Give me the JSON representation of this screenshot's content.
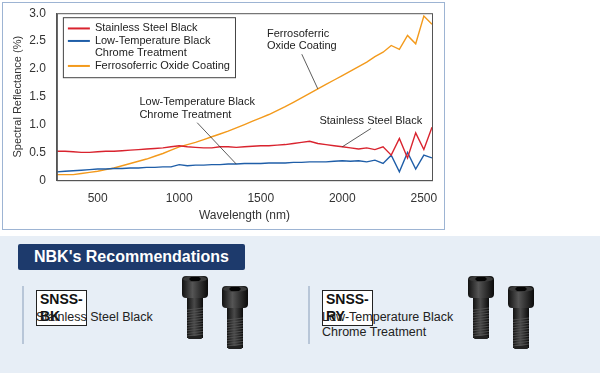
{
  "chart_data": {
    "type": "line",
    "x_label": "Wavelength (nm)",
    "y_label": "Spectral Reflectance (%)",
    "x": [
      250,
      300,
      350,
      400,
      450,
      500,
      550,
      600,
      650,
      700,
      750,
      800,
      850,
      900,
      950,
      1000,
      1050,
      1100,
      1150,
      1200,
      1250,
      1300,
      1350,
      1400,
      1450,
      1500,
      1550,
      1600,
      1650,
      1700,
      1750,
      1800,
      1850,
      1900,
      1950,
      2000,
      2050,
      2100,
      2150,
      2200,
      2250,
      2300,
      2350,
      2400,
      2450,
      2500,
      2550
    ],
    "series": [
      {
        "name": "Stainless Steel Black",
        "color": "#d9232e",
        "values": [
          0.52,
          0.52,
          0.51,
          0.5,
          0.5,
          0.51,
          0.52,
          0.52,
          0.53,
          0.54,
          0.55,
          0.56,
          0.57,
          0.58,
          0.6,
          0.62,
          0.6,
          0.59,
          0.58,
          0.58,
          0.6,
          0.6,
          0.59,
          0.6,
          0.61,
          0.62,
          0.62,
          0.63,
          0.64,
          0.66,
          0.68,
          0.7,
          0.66,
          0.64,
          0.62,
          0.6,
          0.58,
          0.56,
          0.58,
          0.55,
          0.6,
          0.45,
          0.75,
          0.4,
          0.85,
          0.55,
          0.95
        ]
      },
      {
        "name": "Low-Temperature Black Chrome Treatment",
        "color": "#1f5ea8",
        "values": [
          0.15,
          0.16,
          0.17,
          0.18,
          0.19,
          0.2,
          0.2,
          0.21,
          0.21,
          0.22,
          0.22,
          0.23,
          0.23,
          0.24,
          0.24,
          0.28,
          0.26,
          0.27,
          0.27,
          0.28,
          0.28,
          0.29,
          0.29,
          0.3,
          0.3,
          0.3,
          0.31,
          0.31,
          0.31,
          0.32,
          0.32,
          0.33,
          0.33,
          0.33,
          0.34,
          0.35,
          0.34,
          0.35,
          0.33,
          0.36,
          0.3,
          0.45,
          0.15,
          0.5,
          0.2,
          0.45,
          0.4
        ]
      },
      {
        "name": "Ferrosoferric Oxide Coating",
        "color": "#f39a1c",
        "values": [
          0.1,
          0.1,
          0.1,
          0.12,
          0.14,
          0.16,
          0.19,
          0.22,
          0.26,
          0.3,
          0.34,
          0.38,
          0.43,
          0.48,
          0.54,
          0.6,
          0.64,
          0.68,
          0.73,
          0.78,
          0.83,
          0.88,
          0.94,
          1.0,
          1.06,
          1.12,
          1.18,
          1.25,
          1.32,
          1.4,
          1.48,
          1.56,
          1.64,
          1.72,
          1.8,
          1.88,
          1.96,
          2.04,
          2.12,
          2.22,
          2.3,
          2.42,
          2.35,
          2.6,
          2.45,
          2.95,
          2.8
        ]
      }
    ],
    "xlim": [
      250,
      2550
    ],
    "xticks": [
      500,
      1000,
      1500,
      2000,
      2500
    ],
    "ylim": [
      0,
      3
    ],
    "yticks": [
      0,
      0.5,
      {
        "value": 1,
        "label": "1.0"
      },
      1.5,
      {
        "value": 2,
        "label": "2.0"
      },
      2.5,
      {
        "value": 3,
        "label": "3.0"
      }
    ],
    "grid": false,
    "legend": "upper left",
    "annotations": [
      "Ferrosoferric Oxide Coating",
      "Low-Temperature Black Chrome Treatment",
      "Stainless Steel Black"
    ]
  },
  "recommendations": {
    "title": "NBK's Recommendations",
    "items": [
      {
        "code": "SNSS-BK",
        "name": "Stainless Steel Black"
      },
      {
        "code": "SNSS-RY",
        "name": "Low-Temperature Black Chrome Treatment"
      }
    ]
  }
}
